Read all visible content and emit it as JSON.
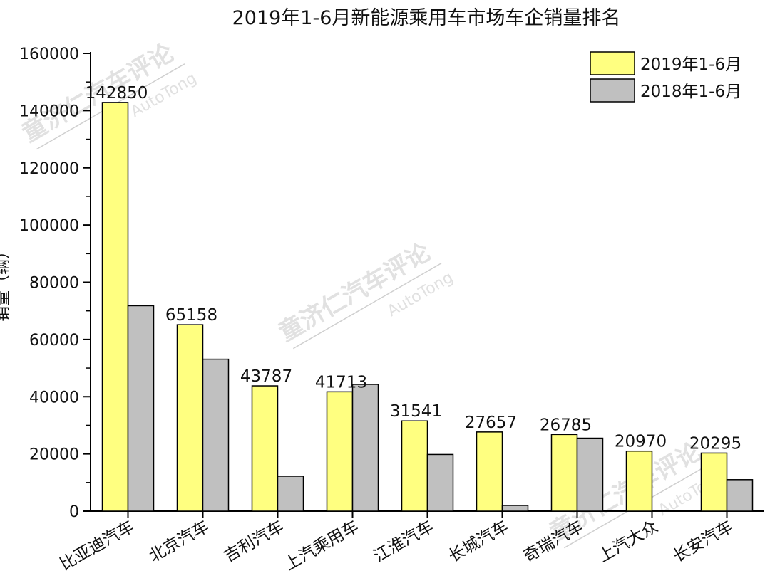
{
  "watermark": {
    "cn": "童济仁汽车评论",
    "en": "AutoTong"
  },
  "chart_data": {
    "type": "bar",
    "title": "2019年1-6月新能源乘用车市场车企销量排名",
    "ylabel": "销量（辆）",
    "xlabel": "",
    "ylim": [
      0,
      160000
    ],
    "yticks": [
      0,
      20000,
      40000,
      60000,
      80000,
      100000,
      120000,
      140000,
      160000
    ],
    "legend_position": "top-right",
    "categories": [
      "比亚迪汽车",
      "北京汽车",
      "吉利汽车",
      "上汽乘用车",
      "江淮汽车",
      "长城汽车",
      "奇瑞汽车",
      "上汽大众",
      "长安汽车"
    ],
    "series": [
      {
        "name": "2019年1-6月",
        "color": "#ffff80",
        "values": [
          142850,
          65158,
          43787,
          41713,
          31541,
          27657,
          26785,
          20970,
          20295
        ],
        "labels": [
          "142850",
          "65158",
          "43787",
          "41713",
          "31541",
          "27657",
          "26785",
          "20970",
          "20295"
        ]
      },
      {
        "name": "2018年1-6月",
        "color": "#c0c0c0",
        "values": [
          71800,
          53100,
          12200,
          44300,
          19800,
          2000,
          25500,
          0,
          11000
        ]
      }
    ]
  }
}
